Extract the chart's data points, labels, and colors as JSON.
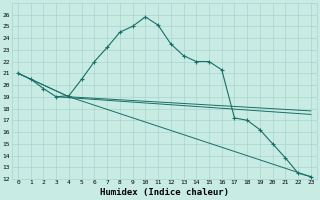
{
  "xlabel": "Humidex (Indice chaleur)",
  "xlim": [
    -0.5,
    23.5
  ],
  "ylim": [
    12,
    27
  ],
  "background_color": "#c8ece4",
  "grid_color": "#a8d4cc",
  "line_color": "#1a6e68",
  "xticks": [
    0,
    1,
    2,
    3,
    4,
    5,
    6,
    7,
    8,
    9,
    10,
    11,
    12,
    13,
    14,
    15,
    16,
    17,
    18,
    19,
    20,
    21,
    22,
    23
  ],
  "yticks": [
    12,
    13,
    14,
    15,
    16,
    17,
    18,
    19,
    20,
    21,
    22,
    23,
    24,
    25,
    26
  ],
  "curve1_x": [
    0,
    1,
    2,
    3,
    4,
    5,
    6,
    7,
    8,
    9,
    10,
    11,
    12,
    13,
    14,
    15,
    16,
    17,
    18,
    19,
    20,
    21,
    22,
    23
  ],
  "curve1_y": [
    21.0,
    20.5,
    19.7,
    19.0,
    19.1,
    20.5,
    22.0,
    23.2,
    24.5,
    25.0,
    25.8,
    25.1,
    23.5,
    22.5,
    22.0,
    22.0,
    21.3,
    17.2,
    17.0,
    16.2,
    15.0,
    13.8,
    12.5,
    12.2
  ],
  "line2_x": [
    0,
    4,
    23
  ],
  "line2_y": [
    21.0,
    19.0,
    12.2
  ],
  "line3_x": [
    0,
    4,
    23
  ],
  "line3_y": [
    21.0,
    19.0,
    17.8
  ],
  "line4_x": [
    3,
    23
  ],
  "line4_y": [
    19.0,
    17.5
  ]
}
